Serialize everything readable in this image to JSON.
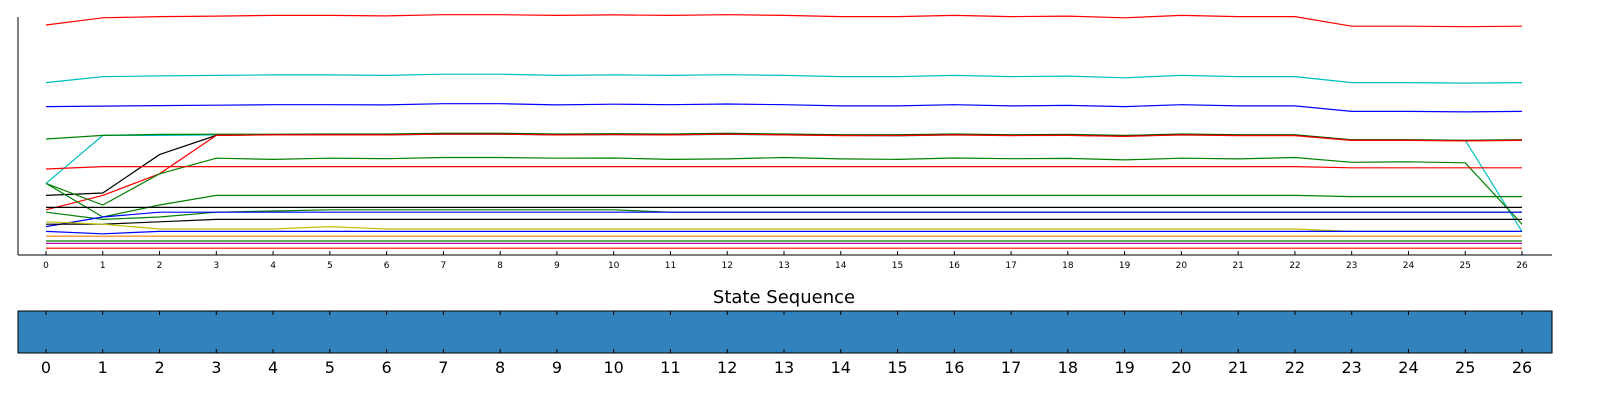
{
  "chart_data": [
    {
      "type": "line",
      "title": "",
      "xlabel": "",
      "ylabel": "",
      "x": [
        0,
        1,
        2,
        3,
        4,
        5,
        6,
        7,
        8,
        9,
        10,
        11,
        12,
        13,
        14,
        15,
        16,
        17,
        18,
        19,
        20,
        21,
        22,
        23,
        24,
        25,
        26
      ],
      "xlim": [
        0,
        26
      ],
      "ylim": [
        0,
        1
      ],
      "y_tick_labels_visible": false,
      "grid": false,
      "legend": "none",
      "series": [
        {
          "color": "#ff0000",
          "values": [
            0.95,
            0.98,
            0.985,
            0.987,
            0.99,
            0.99,
            0.988,
            0.993,
            0.993,
            0.99,
            0.992,
            0.99,
            0.993,
            0.99,
            0.985,
            0.985,
            0.99,
            0.985,
            0.987,
            0.98,
            0.99,
            0.985,
            0.985,
            0.945,
            0.945,
            0.943,
            0.945
          ]
        },
        {
          "color": "#00bfbf",
          "values": [
            0.71,
            0.735,
            0.738,
            0.74,
            0.742,
            0.742,
            0.74,
            0.745,
            0.745,
            0.74,
            0.742,
            0.74,
            0.743,
            0.74,
            0.735,
            0.735,
            0.74,
            0.735,
            0.737,
            0.73,
            0.74,
            0.735,
            0.735,
            0.71,
            0.71,
            0.708,
            0.71
          ]
        },
        {
          "color": "#0000ff",
          "values": [
            0.61,
            0.612,
            0.614,
            0.616,
            0.618,
            0.618,
            0.617,
            0.622,
            0.622,
            0.617,
            0.62,
            0.618,
            0.621,
            0.618,
            0.613,
            0.613,
            0.618,
            0.613,
            0.615,
            0.61,
            0.618,
            0.613,
            0.613,
            0.59,
            0.59,
            0.588,
            0.59
          ]
        },
        {
          "color": "#00bfbf",
          "values": [
            0.29,
            0.49,
            0.49,
            0.492,
            0.493,
            0.493,
            0.492,
            0.495,
            0.495,
            0.492,
            0.493,
            0.492,
            0.494,
            0.492,
            0.49,
            0.488,
            0.492,
            0.49,
            0.49,
            0.488,
            0.492,
            0.49,
            0.49,
            0.47,
            0.47,
            0.47,
            0.09
          ]
        },
        {
          "color": "#008000",
          "values": [
            0.475,
            0.49,
            0.494,
            0.495,
            0.495,
            0.496,
            0.496,
            0.499,
            0.499,
            0.496,
            0.497,
            0.496,
            0.499,
            0.496,
            0.493,
            0.493,
            0.496,
            0.493,
            0.494,
            0.49,
            0.496,
            0.493,
            0.493,
            0.472,
            0.472,
            0.47,
            0.472
          ]
        },
        {
          "color": "#000000",
          "values": [
            0.24,
            0.25,
            0.41,
            0.49,
            0.493,
            0.493,
            0.493,
            0.496,
            0.496,
            0.493,
            0.494,
            0.493,
            0.496,
            0.493,
            0.49,
            0.49,
            0.493,
            0.49,
            0.491,
            0.487,
            0.493,
            0.49,
            0.49,
            0.47,
            0.47,
            0.468,
            0.47
          ]
        },
        {
          "color": "#ff0000",
          "values": [
            0.18,
            0.24,
            0.33,
            0.49,
            0.492,
            0.492,
            0.492,
            0.495,
            0.495,
            0.492,
            0.493,
            0.492,
            0.495,
            0.492,
            0.489,
            0.489,
            0.492,
            0.489,
            0.49,
            0.486,
            0.492,
            0.489,
            0.489,
            0.469,
            0.469,
            0.467,
            0.469
          ]
        },
        {
          "color": "#008000",
          "values": [
            0.29,
            0.2,
            0.33,
            0.395,
            0.39,
            0.395,
            0.393,
            0.398,
            0.398,
            0.395,
            0.396,
            0.39,
            0.392,
            0.398,
            0.392,
            0.39,
            0.396,
            0.393,
            0.394,
            0.388,
            0.395,
            0.392,
            0.398,
            0.378,
            0.38,
            0.376,
            0.12
          ]
        },
        {
          "color": "#ff0000",
          "values": [
            0.35,
            0.36,
            0.36,
            0.36,
            0.36,
            0.36,
            0.36,
            0.36,
            0.36,
            0.36,
            0.36,
            0.36,
            0.36,
            0.36,
            0.36,
            0.36,
            0.36,
            0.36,
            0.36,
            0.36,
            0.36,
            0.36,
            0.36,
            0.355,
            0.355,
            0.355,
            0.355
          ]
        },
        {
          "color": "#008000",
          "values": [
            0.29,
            0.15,
            0.2,
            0.24,
            0.24,
            0.24,
            0.24,
            0.24,
            0.24,
            0.24,
            0.24,
            0.24,
            0.24,
            0.24,
            0.24,
            0.24,
            0.24,
            0.24,
            0.24,
            0.24,
            0.24,
            0.24,
            0.24,
            0.235,
            0.235,
            0.235,
            0.235
          ]
        },
        {
          "color": "#000000",
          "values": [
            0.19,
            0.19,
            0.19,
            0.19,
            0.19,
            0.19,
            0.19,
            0.19,
            0.19,
            0.19,
            0.19,
            0.19,
            0.19,
            0.19,
            0.19,
            0.19,
            0.19,
            0.19,
            0.19,
            0.19,
            0.19,
            0.19,
            0.19,
            0.19,
            0.19,
            0.19,
            0.19
          ]
        },
        {
          "color": "#008000",
          "values": [
            0.17,
            0.14,
            0.15,
            0.17,
            0.175,
            0.18,
            0.18,
            0.18,
            0.18,
            0.18,
            0.18,
            0.17,
            0.17,
            0.17,
            0.17,
            0.17,
            0.17,
            0.17,
            0.17,
            0.17,
            0.17,
            0.17,
            0.17,
            0.17,
            0.17,
            0.17,
            0.17
          ]
        },
        {
          "color": "#0000ff",
          "values": [
            0.11,
            0.15,
            0.17,
            0.17,
            0.17,
            0.17,
            0.17,
            0.17,
            0.17,
            0.17,
            0.17,
            0.17,
            0.17,
            0.17,
            0.17,
            0.17,
            0.17,
            0.17,
            0.17,
            0.17,
            0.17,
            0.17,
            0.17,
            0.17,
            0.17,
            0.17,
            0.17
          ]
        },
        {
          "color": "#000000",
          "values": [
            0.12,
            0.12,
            0.13,
            0.14,
            0.14,
            0.14,
            0.14,
            0.14,
            0.14,
            0.14,
            0.14,
            0.14,
            0.14,
            0.14,
            0.14,
            0.14,
            0.14,
            0.14,
            0.14,
            0.14,
            0.14,
            0.14,
            0.14,
            0.14,
            0.14,
            0.14,
            0.14
          ]
        },
        {
          "color": "#bfbf00",
          "values": [
            0.13,
            0.12,
            0.1,
            0.1,
            0.1,
            0.11,
            0.1,
            0.1,
            0.1,
            0.1,
            0.1,
            0.1,
            0.1,
            0.1,
            0.1,
            0.1,
            0.1,
            0.1,
            0.1,
            0.1,
            0.1,
            0.1,
            0.1,
            0.09,
            0.09,
            0.09,
            0.09
          ]
        },
        {
          "color": "#0000ff",
          "values": [
            0.09,
            0.08,
            0.09,
            0.09,
            0.09,
            0.09,
            0.09,
            0.09,
            0.09,
            0.09,
            0.09,
            0.09,
            0.09,
            0.09,
            0.09,
            0.09,
            0.09,
            0.09,
            0.09,
            0.09,
            0.09,
            0.09,
            0.09,
            0.09,
            0.09,
            0.09,
            0.09
          ]
        },
        {
          "color": "#ff7f00",
          "values": [
            0.07,
            0.07,
            0.07,
            0.07,
            0.07,
            0.07,
            0.07,
            0.07,
            0.07,
            0.07,
            0.07,
            0.07,
            0.07,
            0.07,
            0.07,
            0.07,
            0.07,
            0.07,
            0.07,
            0.07,
            0.07,
            0.07,
            0.07,
            0.07,
            0.07,
            0.07,
            0.07
          ]
        },
        {
          "color": "#bf00bf",
          "values": [
            0.04,
            0.04,
            0.04,
            0.04,
            0.04,
            0.04,
            0.04,
            0.04,
            0.04,
            0.04,
            0.04,
            0.04,
            0.04,
            0.04,
            0.04,
            0.04,
            0.04,
            0.04,
            0.04,
            0.04,
            0.04,
            0.04,
            0.04,
            0.04,
            0.04,
            0.04,
            0.04
          ]
        },
        {
          "color": "#008000",
          "values": [
            0.05,
            0.05,
            0.05,
            0.05,
            0.05,
            0.05,
            0.05,
            0.05,
            0.05,
            0.05,
            0.05,
            0.05,
            0.05,
            0.05,
            0.05,
            0.05,
            0.05,
            0.05,
            0.05,
            0.05,
            0.05,
            0.05,
            0.05,
            0.05,
            0.05,
            0.05,
            0.05
          ]
        },
        {
          "color": "#ff0000",
          "values": [
            0.02,
            0.02,
            0.02,
            0.02,
            0.02,
            0.02,
            0.02,
            0.02,
            0.02,
            0.02,
            0.02,
            0.02,
            0.02,
            0.02,
            0.02,
            0.02,
            0.02,
            0.02,
            0.02,
            0.02,
            0.02,
            0.02,
            0.02,
            0.02,
            0.02,
            0.02,
            0.02
          ]
        }
      ]
    },
    {
      "type": "heatmap",
      "title": "State Sequence",
      "categories": [
        "0",
        "1",
        "2",
        "3",
        "4",
        "5",
        "6",
        "7",
        "8",
        "9",
        "10",
        "11",
        "12",
        "13",
        "14",
        "15",
        "16",
        "17",
        "18",
        "19",
        "20",
        "21",
        "22",
        "23",
        "24",
        "25",
        "26"
      ],
      "values": [
        0,
        0,
        0,
        0,
        0,
        0,
        0,
        0,
        0,
        0,
        0,
        0,
        0,
        0,
        0,
        0,
        0,
        0,
        0,
        0,
        0,
        0,
        0,
        0,
        0,
        0,
        0
      ],
      "color": "#3182bd"
    }
  ]
}
